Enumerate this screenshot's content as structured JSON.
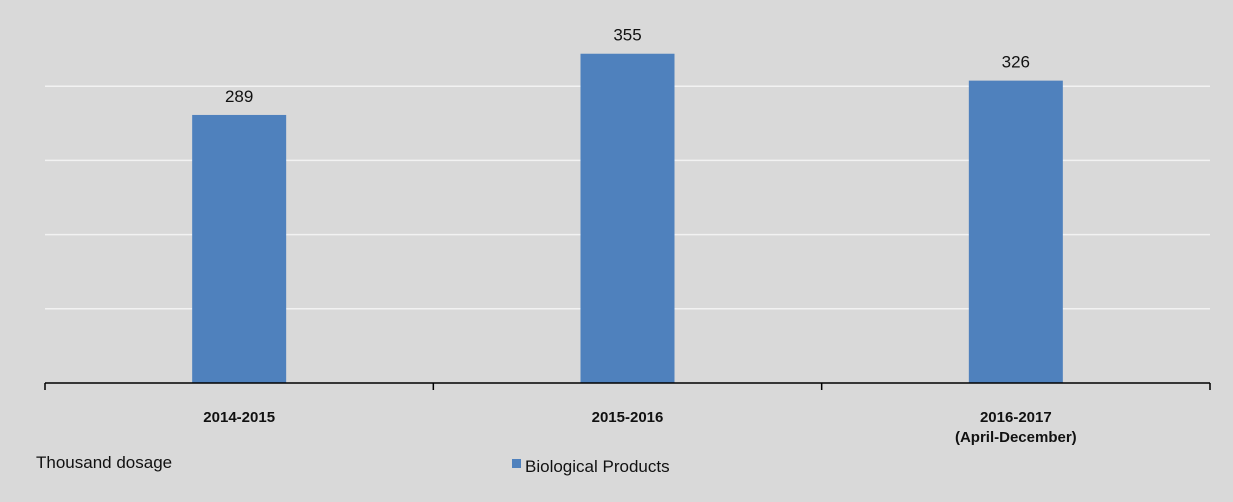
{
  "chart_data": {
    "type": "bar",
    "categories": [
      "2014-2015",
      "2015-2016",
      "2016-2017\n(April-December)"
    ],
    "series": [
      {
        "name": "Biological Products",
        "values": [
          289,
          355,
          326
        ]
      }
    ],
    "data_labels": [
      "289",
      "355",
      "326"
    ],
    "unit_label": "Thousand dosage",
    "legend_position": "bottom",
    "grid": true,
    "ylim": [
      0,
      400
    ],
    "colors": {
      "bar": "#4f81bd",
      "gridline": "#f2f2f2",
      "plot_background": "#d9d9d9",
      "axis": "#000000"
    }
  }
}
